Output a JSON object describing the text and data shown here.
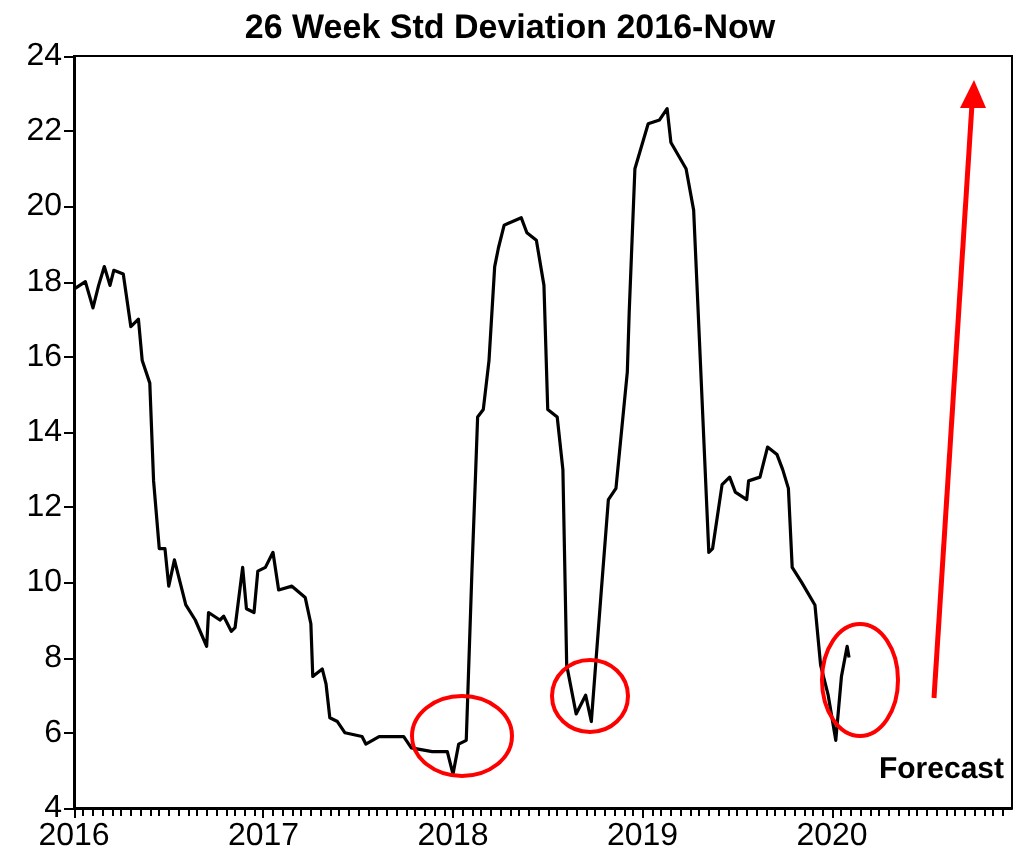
{
  "chart_data": {
    "type": "line",
    "title": "26 Week Std Deviation 2016-Now",
    "x": [
      2016.0,
      2016.06,
      2016.1,
      2016.13,
      2016.16,
      2016.19,
      2016.21,
      2016.26,
      2016.3,
      2016.34,
      2016.36,
      2016.4,
      2016.42,
      2016.45,
      2016.48,
      2016.5,
      2016.53,
      2016.56,
      2016.59,
      2016.64,
      2016.7,
      2016.71,
      2016.77,
      2016.79,
      2016.83,
      2016.85,
      2016.89,
      2016.91,
      2016.95,
      2016.97,
      2017.01,
      2017.05,
      2017.08,
      2017.15,
      2017.22,
      2017.25,
      2017.26,
      2017.31,
      2017.33,
      2017.35,
      2017.39,
      2017.43,
      2017.52,
      2017.54,
      2017.61,
      2017.74,
      2017.78,
      2017.89,
      2017.97,
      2018.0,
      2018.03,
      2018.07,
      2018.1,
      2018.12,
      2018.13,
      2018.16,
      2018.19,
      2018.22,
      2018.24,
      2018.27,
      2018.36,
      2018.39,
      2018.44,
      2018.48,
      2018.5,
      2018.55,
      2018.58,
      2018.6,
      2018.65,
      2018.7,
      2018.73,
      2018.78,
      2018.82,
      2018.86,
      2018.92,
      2018.93,
      2018.96,
      2019.03,
      2019.09,
      2019.13,
      2019.15,
      2019.23,
      2019.27,
      2019.3,
      2019.35,
      2019.37,
      2019.42,
      2019.46,
      2019.49,
      2019.55,
      2019.56,
      2019.62,
      2019.66,
      2019.71,
      2019.74,
      2019.77,
      2019.79,
      2019.84,
      2019.91,
      2019.94,
      2019.98,
      2020.02,
      2020.05,
      2020.08,
      2020.09
    ],
    "series": [
      {
        "color": "#000000",
        "values": [
          17.8,
          18.0,
          17.3,
          17.9,
          18.4,
          17.9,
          18.3,
          18.2,
          16.8,
          17.0,
          15.9,
          15.3,
          12.7,
          10.9,
          10.9,
          9.9,
          10.6,
          10.0,
          9.4,
          9.0,
          8.3,
          9.2,
          9.0,
          9.1,
          8.7,
          8.8,
          10.4,
          9.3,
          9.2,
          10.3,
          10.4,
          10.8,
          9.8,
          9.9,
          9.6,
          8.9,
          7.5,
          7.7,
          7.3,
          6.4,
          6.3,
          6.0,
          5.9,
          5.7,
          5.9,
          5.9,
          5.6,
          5.5,
          5.5,
          4.9,
          5.7,
          5.8,
          10.3,
          13.0,
          14.4,
          14.6,
          15.9,
          18.4,
          18.9,
          19.5,
          19.7,
          19.3,
          19.1,
          17.9,
          14.6,
          14.4,
          13.0,
          7.8,
          6.5,
          7.0,
          6.3,
          9.6,
          12.2,
          12.5,
          15.6,
          17.2,
          21.0,
          22.2,
          22.3,
          22.6,
          21.7,
          21.0,
          19.9,
          16.5,
          10.8,
          10.9,
          12.6,
          12.8,
          12.4,
          12.2,
          12.7,
          12.8,
          13.6,
          13.4,
          13.0,
          12.5,
          10.4,
          10.0,
          9.4,
          7.8,
          7.0,
          5.8,
          7.5,
          8.3,
          8.0
        ]
      }
    ],
    "xlim": [
      2016,
      2020.95
    ],
    "xticks": [
      2016,
      2017,
      2018,
      2019,
      2020
    ],
    "ylim": [
      4,
      24
    ],
    "yticks": [
      4,
      6,
      8,
      10,
      12,
      14,
      16,
      18,
      20,
      22,
      24
    ],
    "annotations": [
      "Forecast"
    ],
    "grid": false,
    "marker": "none",
    "line_style": "solid"
  }
}
